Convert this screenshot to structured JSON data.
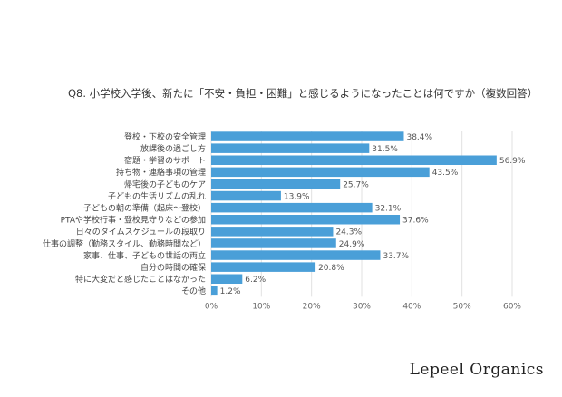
{
  "chart_data": {
    "type": "bar",
    "orientation": "horizontal",
    "title": "Q8. 小学校入学後、新たに「不安・負担・困難」と感じるようになったことは何ですか（複数回答）",
    "categories": [
      "登校・下校の安全管理",
      "放課後の過ごし方",
      "宿題・学習のサポート",
      "持ち物・連絡事項の管理",
      "帰宅後の子どものケア",
      "子どもの生活リズムの乱れ",
      "子どもの朝の準備（起床〜登校）",
      "PTAや学校行事・登校見守りなどの参加",
      "日々のタイムスケジュールの段取り",
      "仕事の調整（勤務スタイル、勤務時間など）",
      "家事、仕事、子どもの世話の両立",
      "自分の時間の確保",
      "特に大変だと感じたことはなかった",
      "その他"
    ],
    "values": [
      38.4,
      31.5,
      56.9,
      43.5,
      25.7,
      13.9,
      32.1,
      37.6,
      24.3,
      24.9,
      33.7,
      20.8,
      6.2,
      1.2
    ],
    "labels": [
      "38.4%",
      "31.5%",
      "56.9%",
      "43.5%",
      "25.7%",
      "13.9%",
      "32.1%",
      "37.6%",
      "24.3%",
      "24.9%",
      "33.7%",
      "20.8%",
      "6.2%",
      "1.2%"
    ],
    "xlim": [
      0,
      60
    ],
    "xticks": [
      "0%",
      "10%",
      "20%",
      "30%",
      "40%",
      "50%",
      "60%"
    ],
    "grid": true,
    "bar_color": "#4a9fd8"
  },
  "brand": "Lepeel Organics"
}
